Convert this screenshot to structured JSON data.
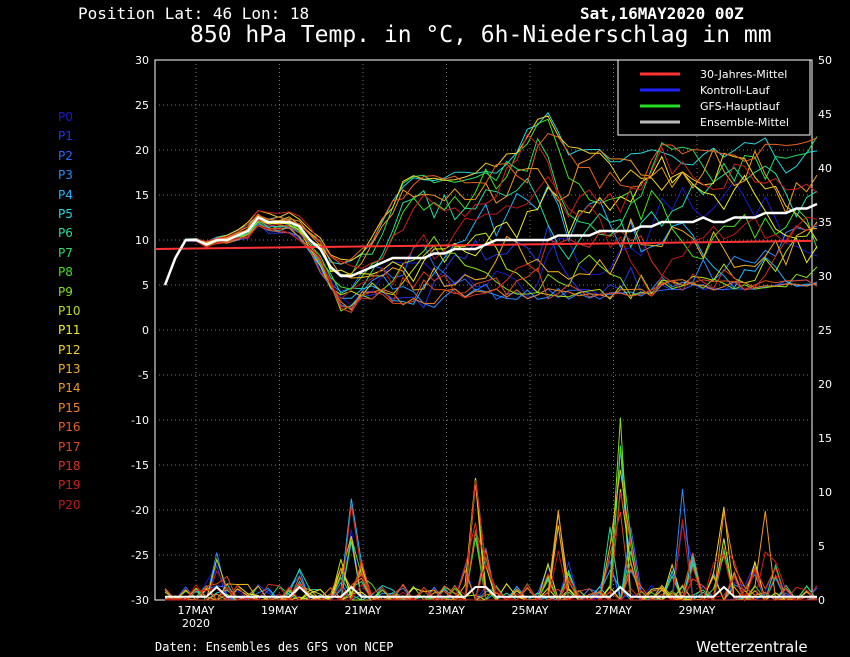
{
  "header": {
    "position": "Position   Lat: 46 Lon: 18",
    "date": "Sat,16MAY2020 00Z",
    "title": "850 hPa Temp. in °C, 6h-Niederschlag in mm"
  },
  "footer": {
    "source": "Daten: Ensembles des GFS von NCEP",
    "brand": "Wetterzentrale"
  },
  "members": [
    {
      "label": "P0",
      "color": "#1a1ad0"
    },
    {
      "label": "P1",
      "color": "#2233e8"
    },
    {
      "label": "P2",
      "color": "#2a66ff"
    },
    {
      "label": "P3",
      "color": "#2a8cff"
    },
    {
      "label": "P4",
      "color": "#22b4ff"
    },
    {
      "label": "P5",
      "color": "#22d8e0"
    },
    {
      "label": "P6",
      "color": "#22dca0"
    },
    {
      "label": "P7",
      "color": "#22e060"
    },
    {
      "label": "P8",
      "color": "#44e022"
    },
    {
      "label": "P9",
      "color": "#80e018"
    },
    {
      "label": "P10",
      "color": "#bbe012"
    },
    {
      "label": "P11",
      "color": "#f0f020"
    },
    {
      "label": "P12",
      "color": "#f0d020"
    },
    {
      "label": "P13",
      "color": "#f0b020"
    },
    {
      "label": "P14",
      "color": "#f09a20"
    },
    {
      "label": "P15",
      "color": "#f08020"
    },
    {
      "label": "P16",
      "color": "#e86020"
    },
    {
      "label": "P17",
      "color": "#e04820"
    },
    {
      "label": "P18",
      "color": "#d83020"
    },
    {
      "label": "P19",
      "color": "#d02020"
    },
    {
      "label": "P20",
      "color": "#c01818"
    }
  ],
  "chart_data": {
    "type": "line",
    "title": "850 hPa Temp. in °C, 6h-Niederschlag in mm",
    "x_ticks": [
      "17MAY",
      "19MAY",
      "21MAY",
      "23MAY",
      "25MAY",
      "27MAY",
      "29MAY"
    ],
    "x_subtick": "2020",
    "x_step_hours": 6,
    "y_left": {
      "range": [
        -30,
        30
      ],
      "ticks": [
        "30",
        "25",
        "20",
        "15",
        "10",
        "5",
        "0",
        "-5",
        "-10",
        "-15",
        "-20",
        "-25",
        "-30"
      ]
    },
    "y_right": {
      "range": [
        0,
        50
      ],
      "ticks": [
        "50",
        "45",
        "40",
        "35",
        "30",
        "25",
        "20",
        "15",
        "10",
        "5",
        "0"
      ]
    },
    "grid": true,
    "legend": {
      "position": "top-right",
      "items": [
        {
          "name": "30-Jahres-Mittel",
          "color": "#ff3333"
        },
        {
          "name": "Kontroll-Lauf",
          "color": "#2222ff"
        },
        {
          "name": "GFS-Hauptlauf",
          "color": "#22dd22"
        },
        {
          "name": "Ensemble-Mittel",
          "color": "#bbbbbb"
        }
      ]
    },
    "climate_mean": {
      "name": "30-Jahres-Mittel",
      "start": 9.0,
      "end": 9.9
    },
    "ensemble_mean_temp": [
      5,
      8,
      10,
      10,
      9.5,
      10,
      10,
      10.5,
      11,
      12.5,
      12,
      12,
      12,
      11.5,
      10,
      9,
      7,
      6,
      6,
      6.5,
      7,
      7.5,
      8,
      8,
      8,
      8,
      8.5,
      8.5,
      9,
      9,
      9,
      9.5,
      10,
      10,
      10,
      10,
      10,
      10,
      10.5,
      10.5,
      10.5,
      10.5,
      11,
      11,
      11,
      11,
      11.5,
      11.5,
      12,
      12,
      12,
      12,
      12.5,
      12,
      12,
      12.5,
      12.5,
      12.5,
      13,
      13,
      13,
      13.5,
      13.5,
      14
    ],
    "temp_spread_envelope": {
      "upper": [
        5.5,
        9,
        11,
        11,
        11,
        11,
        11.5,
        12,
        13,
        14,
        13.5,
        13.5,
        13.5,
        13,
        12,
        11,
        9,
        8,
        8,
        9,
        10,
        12,
        14,
        16,
        17,
        17,
        17,
        17,
        17,
        17,
        17,
        18,
        18,
        19,
        20,
        22,
        23,
        24,
        22,
        20,
        20,
        20,
        20,
        19,
        19,
        20,
        20,
        20,
        21,
        20,
        20,
        20,
        20,
        20,
        20,
        20,
        21,
        21,
        21,
        21,
        21,
        21,
        21,
        21
      ],
      "lower": [
        5,
        7,
        9,
        9,
        8,
        8.5,
        9,
        9,
        9,
        10.5,
        10,
        10,
        10,
        9.5,
        8,
        6,
        4,
        2,
        2,
        3,
        4,
        4,
        3,
        3,
        3,
        3,
        3,
        4,
        4,
        4,
        4,
        4,
        4,
        4,
        4,
        4,
        4,
        4,
        4,
        4,
        4,
        4,
        4,
        4,
        4,
        4,
        4,
        4,
        5,
        5,
        5,
        5,
        5,
        5,
        5,
        5,
        5,
        5,
        5,
        5,
        5,
        5,
        5,
        5
      ]
    },
    "precip_spikes_mm": [
      {
        "day": "17MAY",
        "max": 5.5
      },
      {
        "day": "19MAY",
        "max": 3
      },
      {
        "day": "20MAY",
        "max": 9.5
      },
      {
        "day": "23MAY",
        "max": 12.5
      },
      {
        "day": "25MAY",
        "max": 9
      },
      {
        "day": "26MAY",
        "max": 17
      },
      {
        "day": "27MAY",
        "max": 11
      },
      {
        "day": "28MAY",
        "max": 9
      },
      {
        "day": "29MAY",
        "max": 10
      },
      {
        "day": "31MAY",
        "max": 6.5
      }
    ]
  }
}
